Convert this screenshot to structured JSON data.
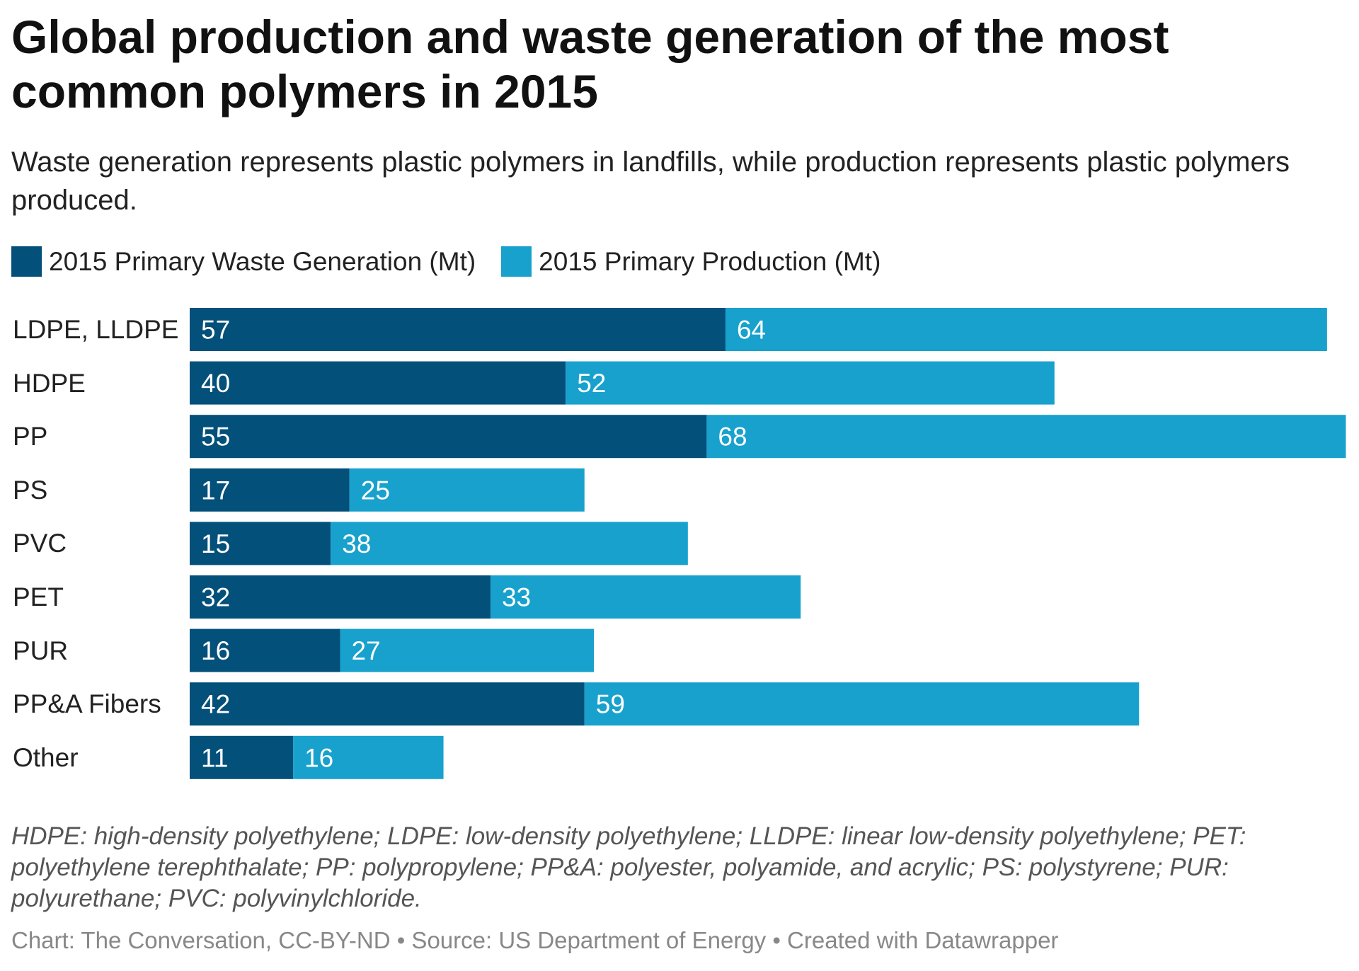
{
  "chart_data": {
    "type": "bar",
    "orientation": "horizontal",
    "stacked": true,
    "title": "Global production and waste generation of the most common polymers in 2015",
    "subtitle": "Waste generation represents plastic polymers in landfills, while production represents plastic polymers produced.",
    "categories": [
      "LDPE, LLDPE",
      "HDPE",
      "PP",
      "PS",
      "PVC",
      "PET",
      "PUR",
      "PP&A Fibers",
      "Other"
    ],
    "series": [
      {
        "name": "2015 Primary Waste Generation (Mt)",
        "color": "#03507a",
        "values": [
          57,
          40,
          55,
          17,
          15,
          32,
          16,
          42,
          11
        ]
      },
      {
        "name": "2015 Primary Production (Mt)",
        "color": "#18a1cd",
        "values": [
          64,
          52,
          68,
          25,
          38,
          33,
          27,
          59,
          16
        ]
      }
    ],
    "data_labels": true,
    "grid": false,
    "legend": "top-left",
    "notes": "HDPE: high-density polyethylene; LDPE: low-density polyethylene; LLDPE: linear low-density polyethylene; PET: polyethylene terephthalate; PP: polypropylene; PP&A: polyester, polyamide, and acrylic; PS: polystyrene; PUR: polyurethane; PVC: polyvinylchloride.",
    "footer": "Chart: The Conversation, CC-BY-ND • Source: US Department of Energy • Created with Datawrapper"
  }
}
